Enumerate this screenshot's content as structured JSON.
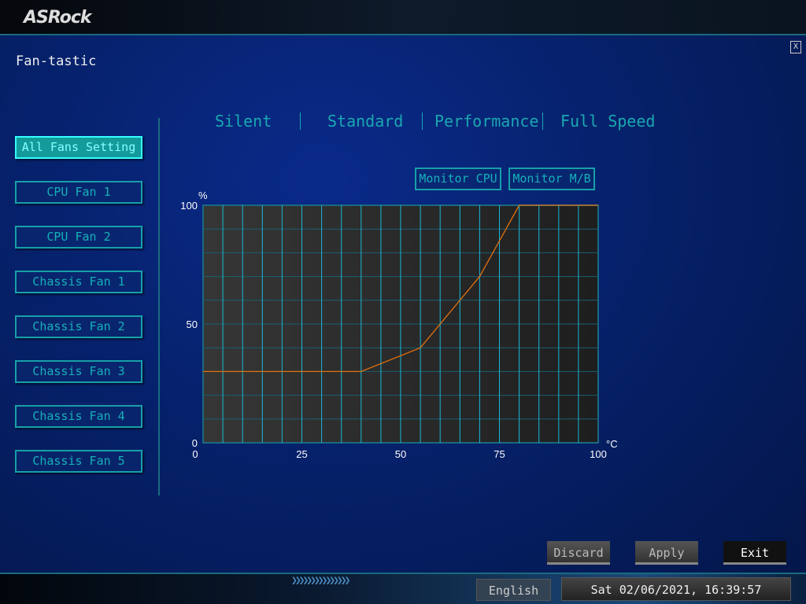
{
  "header": {
    "logo": "ASRock",
    "title": "Fan-tastic",
    "close_label": "X"
  },
  "fans": [
    {
      "label": "All Fans Setting",
      "active": true
    },
    {
      "label": "CPU Fan 1"
    },
    {
      "label": "CPU Fan 2"
    },
    {
      "label": "Chassis Fan 1"
    },
    {
      "label": "Chassis Fan 2"
    },
    {
      "label": "Chassis Fan 3"
    },
    {
      "label": "Chassis Fan 4"
    },
    {
      "label": "Chassis Fan 5"
    }
  ],
  "modes": [
    "Silent",
    "Standard",
    "Performance",
    "Full Speed"
  ],
  "monitor": {
    "cpu": "Monitor CPU",
    "mb": "Monitor M/B"
  },
  "chart_data": {
    "type": "line",
    "xlabel": "°C",
    "ylabel": "%",
    "xlim": [
      0,
      100
    ],
    "ylim": [
      0,
      100
    ],
    "xticks": [
      "0",
      "25",
      "50",
      "75",
      "100"
    ],
    "yticks": [
      "0",
      "50",
      "100"
    ],
    "grid": true,
    "x": [
      0,
      40,
      55,
      70,
      80,
      100
    ],
    "y": [
      30,
      30,
      40,
      70,
      100,
      100
    ],
    "line_color": "#e07010",
    "grid_color": "#18b8d8"
  },
  "footer": {
    "discard": "Discard",
    "apply": "Apply",
    "exit": "Exit",
    "language": "English",
    "datetime": "Sat 02/06/2021, 16:39:57"
  }
}
